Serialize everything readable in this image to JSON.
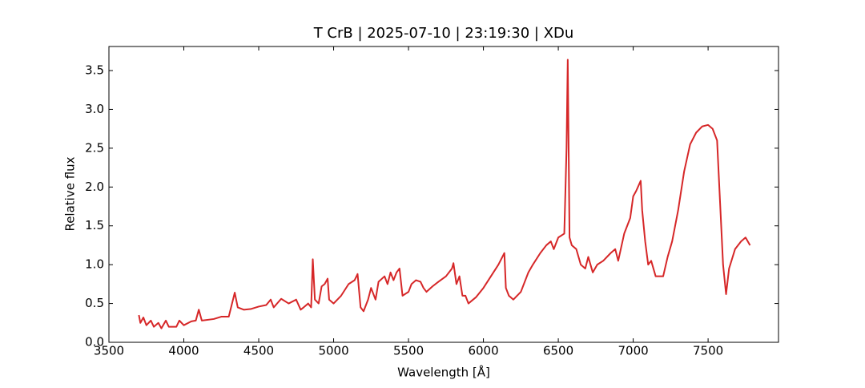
{
  "chart_data": {
    "type": "line",
    "title": "T CrB | 2025-07-10 | 23:19:30 | XDu",
    "x_label": "Wavelength [Å]",
    "y_label": "Relative flux",
    "color": "#d62728",
    "xlim": [
      3500,
      7970
    ],
    "ylim": [
      0,
      3.81
    ],
    "xticks": [
      3500,
      4000,
      4500,
      5000,
      5500,
      6000,
      6500,
      7000,
      7500
    ],
    "yticks": [
      {
        "value": 0,
        "label": "0.0"
      },
      0.5,
      {
        "value": 1,
        "label": "1.0"
      },
      1.5,
      {
        "value": 2,
        "label": "2.0"
      },
      2.5,
      {
        "value": 3,
        "label": "3.0"
      },
      3.5
    ],
    "x": [
      3700,
      3710,
      3730,
      3750,
      3780,
      3800,
      3830,
      3850,
      3880,
      3900,
      3950,
      3970,
      4000,
      4050,
      4080,
      4100,
      4120,
      4200,
      4250,
      4300,
      4340,
      4360,
      4400,
      4450,
      4500,
      4550,
      4580,
      4600,
      4650,
      4700,
      4750,
      4780,
      4800,
      4830,
      4850,
      4861,
      4875,
      4900,
      4920,
      4940,
      4960,
      4970,
      5000,
      5050,
      5100,
      5140,
      5160,
      5180,
      5200,
      5230,
      5250,
      5280,
      5300,
      5340,
      5360,
      5380,
      5400,
      5420,
      5440,
      5460,
      5500,
      5520,
      5550,
      5580,
      5600,
      5620,
      5660,
      5700,
      5750,
      5790,
      5800,
      5820,
      5840,
      5860,
      5880,
      5900,
      5950,
      6000,
      6050,
      6100,
      6140,
      6150,
      6170,
      6200,
      6250,
      6300,
      6330,
      6380,
      6420,
      6450,
      6470,
      6500,
      6540,
      6555,
      6563,
      6575,
      6590,
      6620,
      6650,
      6680,
      6700,
      6730,
      6760,
      6800,
      6850,
      6880,
      6900,
      6940,
      6980,
      7000,
      7020,
      7050,
      7060,
      7080,
      7100,
      7120,
      7150,
      7200,
      7230,
      7260,
      7300,
      7340,
      7380,
      7420,
      7460,
      7500,
      7530,
      7560,
      7580,
      7600,
      7620,
      7640,
      7680,
      7720,
      7750,
      7780
    ],
    "values": [
      0.35,
      0.25,
      0.32,
      0.22,
      0.28,
      0.2,
      0.25,
      0.18,
      0.28,
      0.2,
      0.2,
      0.28,
      0.22,
      0.27,
      0.28,
      0.42,
      0.28,
      0.3,
      0.33,
      0.33,
      0.64,
      0.45,
      0.42,
      0.43,
      0.46,
      0.48,
      0.55,
      0.45,
      0.56,
      0.5,
      0.55,
      0.42,
      0.45,
      0.5,
      0.45,
      1.07,
      0.55,
      0.5,
      0.72,
      0.75,
      0.82,
      0.55,
      0.5,
      0.6,
      0.75,
      0.8,
      0.88,
      0.45,
      0.4,
      0.55,
      0.7,
      0.55,
      0.78,
      0.85,
      0.75,
      0.9,
      0.8,
      0.9,
      0.95,
      0.6,
      0.65,
      0.75,
      0.8,
      0.78,
      0.7,
      0.65,
      0.72,
      0.78,
      0.85,
      0.95,
      1.02,
      0.75,
      0.85,
      0.6,
      0.6,
      0.5,
      0.58,
      0.7,
      0.85,
      1.0,
      1.15,
      0.7,
      0.6,
      0.55,
      0.65,
      0.9,
      1.0,
      1.15,
      1.25,
      1.3,
      1.2,
      1.35,
      1.4,
      2.5,
      3.64,
      1.35,
      1.25,
      1.2,
      1.0,
      0.95,
      1.1,
      0.9,
      1.0,
      1.05,
      1.15,
      1.2,
      1.05,
      1.4,
      1.6,
      1.88,
      1.95,
      2.08,
      1.7,
      1.3,
      1.0,
      1.05,
      0.85,
      0.85,
      1.1,
      1.3,
      1.7,
      2.2,
      2.55,
      2.7,
      2.78,
      2.8,
      2.75,
      2.6,
      1.8,
      1.0,
      0.62,
      0.95,
      1.2,
      1.3,
      1.35,
      1.25
    ]
  }
}
